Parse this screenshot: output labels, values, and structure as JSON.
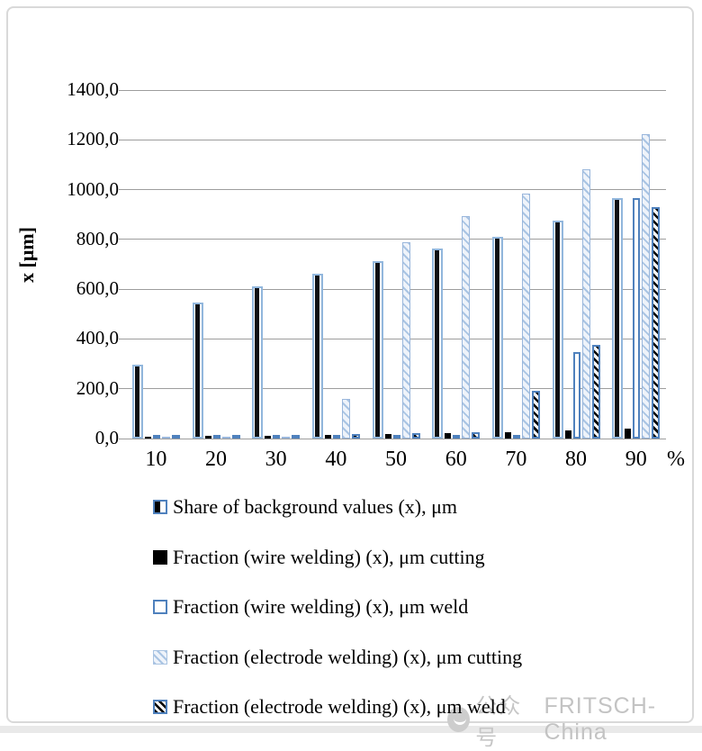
{
  "chart_data": {
    "type": "bar",
    "title": "",
    "ylabel": "x [μm]",
    "x_unit_label": "%",
    "categories": [
      "10",
      "20",
      "30",
      "40",
      "50",
      "60",
      "70",
      "80",
      "90"
    ],
    "y_ticks": [
      "1400,0",
      "1200,0",
      "1000,0",
      "800,0",
      "600,0",
      "400,0",
      "200,0",
      "0,0"
    ],
    "ylim": [
      0,
      1400
    ],
    "y_step": 200,
    "grid": "horizontal",
    "legend_position": "bottom",
    "decimal_separator": ",",
    "series": [
      {
        "name": "Share of background values (x), μm",
        "style_key": "s0",
        "values": [
          295,
          545,
          612,
          663,
          712,
          762,
          812,
          876,
          965
        ]
      },
      {
        "name": "Fraction (wire welding) (x), μm cutting",
        "style_key": "s1",
        "values": [
          8,
          10,
          12,
          15,
          18,
          22,
          26,
          32,
          40
        ]
      },
      {
        "name": "Fraction (wire welding) (x), μm weld",
        "style_key": "s2",
        "values": [
          3,
          4,
          6,
          7,
          9,
          10,
          13,
          348,
          966
        ]
      },
      {
        "name": "Fraction (electrode welding) (x), μm cutting",
        "style_key": "s3",
        "values": [
          5,
          6,
          8,
          160,
          790,
          895,
          985,
          1083,
          1224
        ]
      },
      {
        "name": "Fraction (electrode welding) (x), μm weld",
        "style_key": "s4",
        "values": [
          9,
          11,
          14,
          18,
          22,
          26,
          192,
          376,
          928
        ]
      }
    ],
    "colors": {
      "accent_blue": "#4f81bd",
      "pale_blue_border": "#92b7dd",
      "hatch_line_blue": "#a9c4e3",
      "hatch_fill": "#eef3fa",
      "bar_black": "#000000",
      "gridline_grey": "#9d9d9d",
      "frame_grey": "#d9d9d9",
      "watermark_grey": "#c6c6c6"
    }
  },
  "watermark": {
    "label": "公众号",
    "brand": "FRITSCH-China"
  }
}
